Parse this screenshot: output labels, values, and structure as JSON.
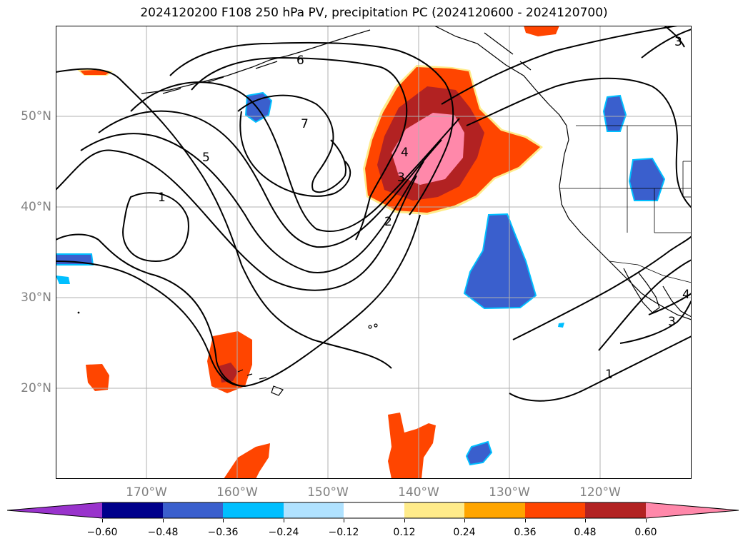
{
  "title": "2024120200 F108 250 hPa PV, precipitation PC (2024120600 - 2024120700)",
  "map": {
    "projection": "cylindrical",
    "lon_range": [
      -180,
      -110
    ],
    "lat_range": [
      10,
      60
    ],
    "grid": true,
    "lat_ticks": [
      "20°N",
      "30°N",
      "40°N",
      "50°N"
    ],
    "lon_ticks": [
      "170°W",
      "160°W",
      "150°W",
      "140°W",
      "130°W",
      "120°W"
    ],
    "contour_labels": [
      "1",
      "2",
      "3",
      "4",
      "5",
      "6",
      "7",
      "1",
      "3",
      "3",
      "4"
    ]
  },
  "colorbar": {
    "ticks": [
      "−0.60",
      "−0.48",
      "−0.36",
      "−0.24",
      "−0.12",
      "0.12",
      "0.24",
      "0.36",
      "0.48",
      "0.60"
    ],
    "colors": [
      "#9933cc",
      "#00008b",
      "#3a5fcd",
      "#00bfff",
      "#b0e2ff",
      "#ffffff",
      "#ffeb8a",
      "#ffa500",
      "#ff4500",
      "#b22222",
      "#ff88aa"
    ],
    "extend": "both"
  }
}
